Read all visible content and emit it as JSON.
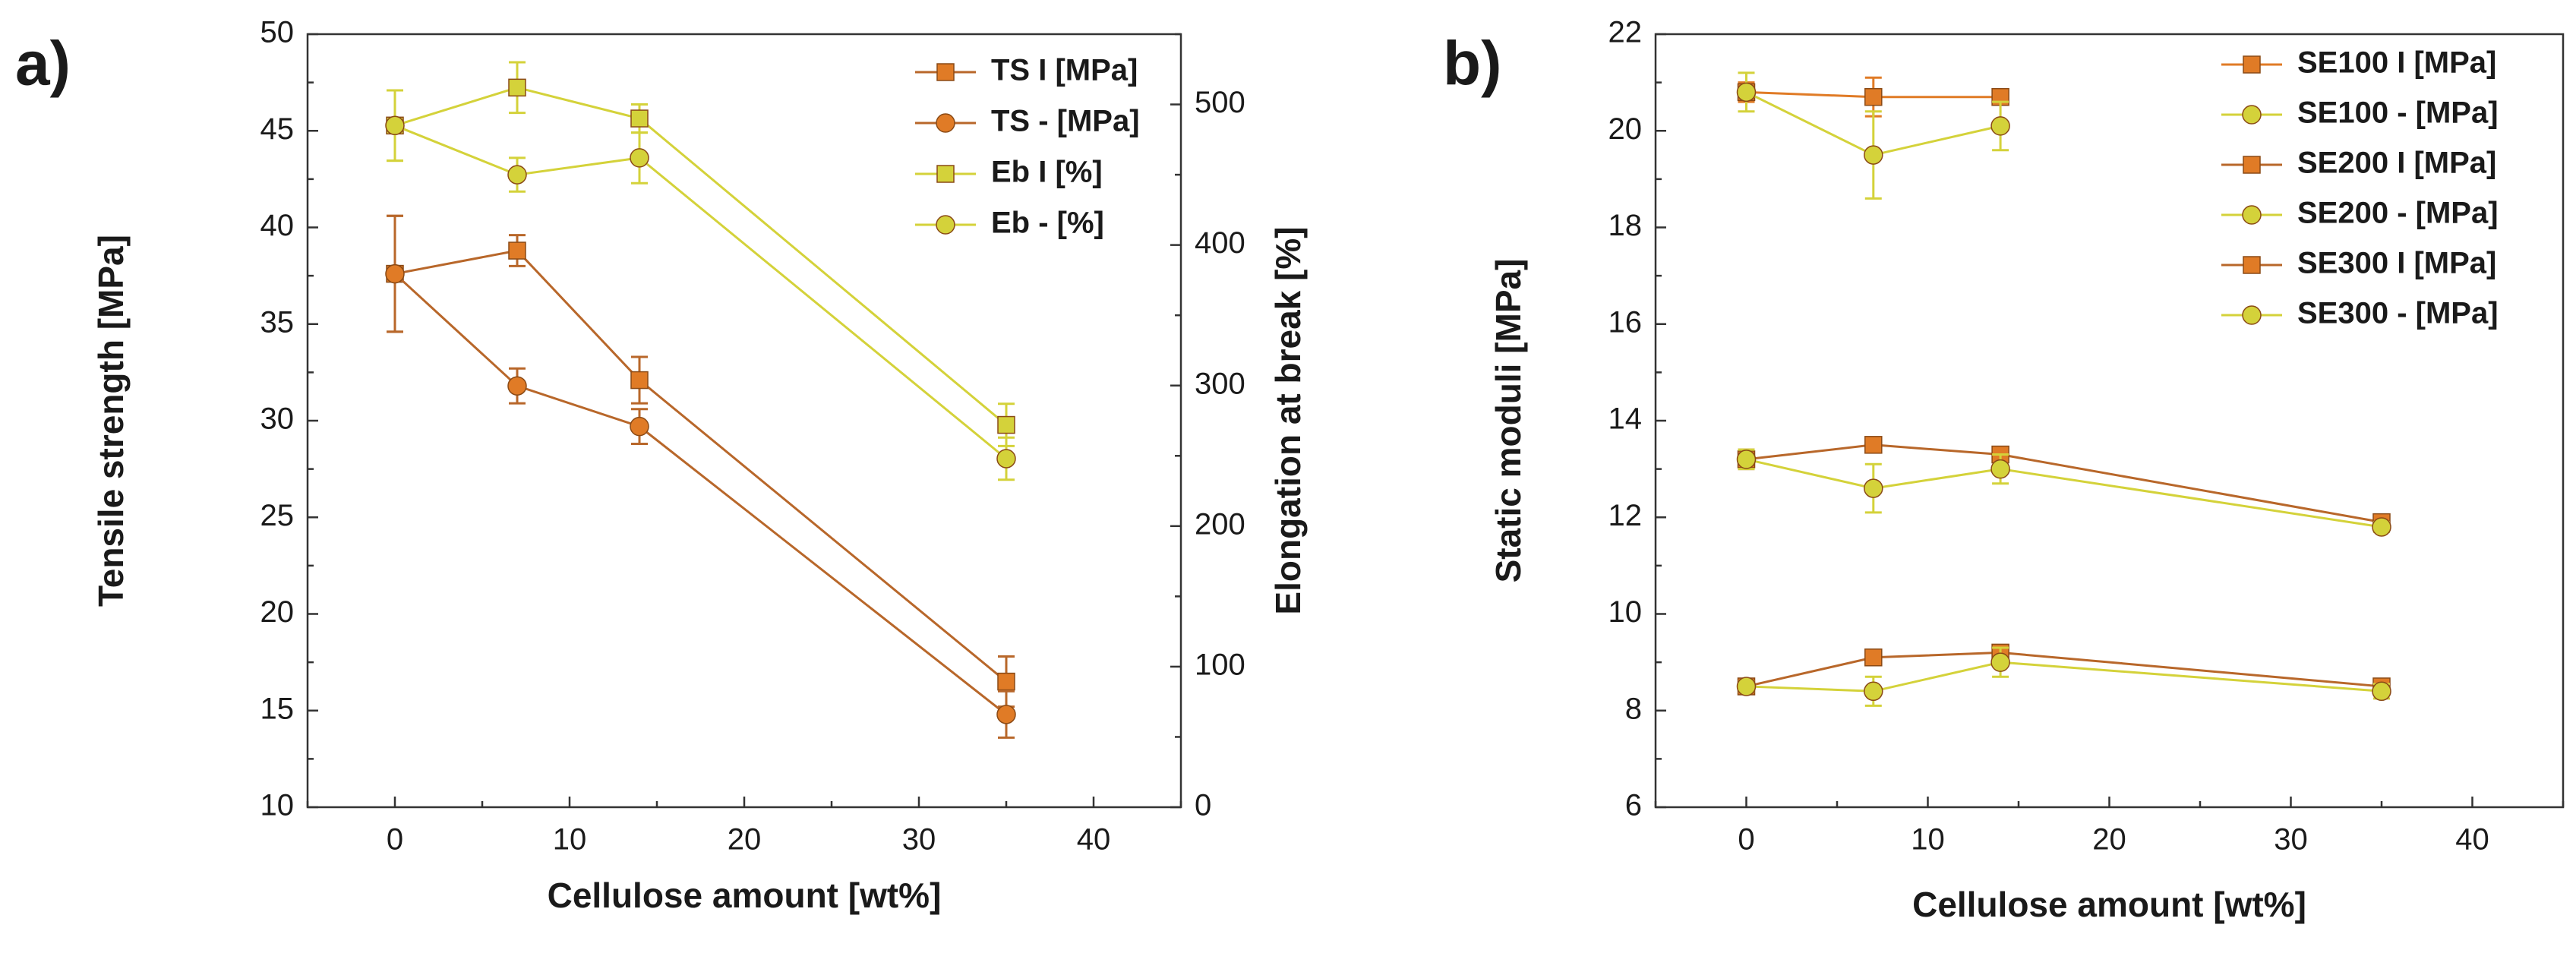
{
  "colors": {
    "orange": "#E07B26",
    "brown": "#B8672A",
    "yellow": "#D4D23A",
    "axis": "#333333"
  },
  "chart_data": [
    {
      "type": "line",
      "panel_label": "a)",
      "xlabel": "Cellulose amount [wt%]",
      "ylabel": "Tensile strength [MPa]",
      "y2label": "Elongation at break [%]",
      "xlim": [
        -5,
        45
      ],
      "ylim": [
        10,
        50
      ],
      "y2lim": [
        0,
        550
      ],
      "xticks": [
        0,
        10,
        20,
        30,
        40
      ],
      "yticks": [
        10,
        15,
        20,
        25,
        30,
        35,
        40,
        45,
        50
      ],
      "y2ticks": [
        0,
        100,
        200,
        300,
        400,
        500
      ],
      "legend_position": "top-right",
      "series": [
        {
          "name": "TS I [MPa]",
          "axis": "left",
          "marker": "square",
          "color": "#E07B26",
          "line_color": "#B8672A",
          "x": [
            0,
            7,
            14,
            35
          ],
          "y": [
            37.6,
            38.8,
            32.1,
            16.5
          ],
          "err": [
            3.0,
            0.8,
            1.2,
            1.3
          ]
        },
        {
          "name": "TS - [MPa]",
          "axis": "left",
          "marker": "circle",
          "color": "#E07B26",
          "line_color": "#B8672A",
          "x": [
            0,
            7,
            14,
            35
          ],
          "y": [
            37.6,
            31.8,
            29.7,
            14.8
          ],
          "err": [
            3.0,
            0.9,
            0.9,
            1.2
          ]
        },
        {
          "name": "Eb I [%]",
          "axis": "right",
          "marker": "square",
          "color": "#D4D23A",
          "line_color": "#D4D23A",
          "x": [
            0,
            7,
            14,
            35
          ],
          "y": [
            485,
            512,
            490,
            272
          ],
          "err": [
            25,
            18,
            10,
            15
          ]
        },
        {
          "name": "Eb - [%]",
          "axis": "right",
          "marker": "circle",
          "color": "#D4D23A",
          "line_color": "#D4D23A",
          "x": [
            0,
            7,
            14,
            35
          ],
          "y": [
            485,
            450,
            462,
            248
          ],
          "err": [
            25,
            12,
            18,
            15
          ]
        }
      ]
    },
    {
      "type": "line",
      "panel_label": "b)",
      "xlabel": "Cellulose amount [wt%]",
      "ylabel": "Static moduli [MPa]",
      "xlim": [
        -5,
        45
      ],
      "ylim": [
        6,
        22
      ],
      "xticks": [
        0,
        10,
        20,
        30,
        40
      ],
      "yticks": [
        6,
        8,
        10,
        12,
        14,
        16,
        18,
        20,
        22
      ],
      "legend_position": "top-right",
      "series": [
        {
          "name": "SE100 I [MPa]",
          "marker": "square",
          "color": "#E07B26",
          "line_color": "#E07B26",
          "x": [
            0,
            7,
            14
          ],
          "y": [
            20.8,
            20.7,
            20.7
          ],
          "err": [
            0.2,
            0.4,
            0.1
          ]
        },
        {
          "name": "SE100 - [MPa]",
          "marker": "circle",
          "color": "#D4D23A",
          "line_color": "#D4D23A",
          "x": [
            0,
            7,
            14
          ],
          "y": [
            20.8,
            19.5,
            20.1
          ],
          "err": [
            0.4,
            0.9,
            0.5
          ]
        },
        {
          "name": "SE200 I [MPa]",
          "marker": "square",
          "color": "#E07B26",
          "line_color": "#B8672A",
          "x": [
            0,
            7,
            14,
            35
          ],
          "y": [
            13.2,
            13.5,
            13.3,
            11.9
          ],
          "err": [
            0.2,
            0.1,
            0.1,
            0.1
          ]
        },
        {
          "name": "SE200 - [MPa]",
          "marker": "circle",
          "color": "#D4D23A",
          "line_color": "#D4D23A",
          "x": [
            0,
            7,
            14,
            35
          ],
          "y": [
            13.2,
            12.6,
            13.0,
            11.8
          ],
          "err": [
            0.2,
            0.5,
            0.3,
            0.1
          ]
        },
        {
          "name": "SE300 I [MPa]",
          "marker": "square",
          "color": "#E07B26",
          "line_color": "#B8672A",
          "x": [
            0,
            7,
            14,
            35
          ],
          "y": [
            8.5,
            9.1,
            9.2,
            8.5
          ],
          "err": [
            0.1,
            0.1,
            0.1,
            0.15
          ]
        },
        {
          "name": "SE300 - [MPa]",
          "marker": "circle",
          "color": "#D4D23A",
          "line_color": "#D4D23A",
          "x": [
            0,
            7,
            14,
            35
          ],
          "y": [
            8.5,
            8.4,
            9.0,
            8.4
          ],
          "err": [
            0.1,
            0.3,
            0.3,
            0.15
          ]
        }
      ]
    }
  ]
}
